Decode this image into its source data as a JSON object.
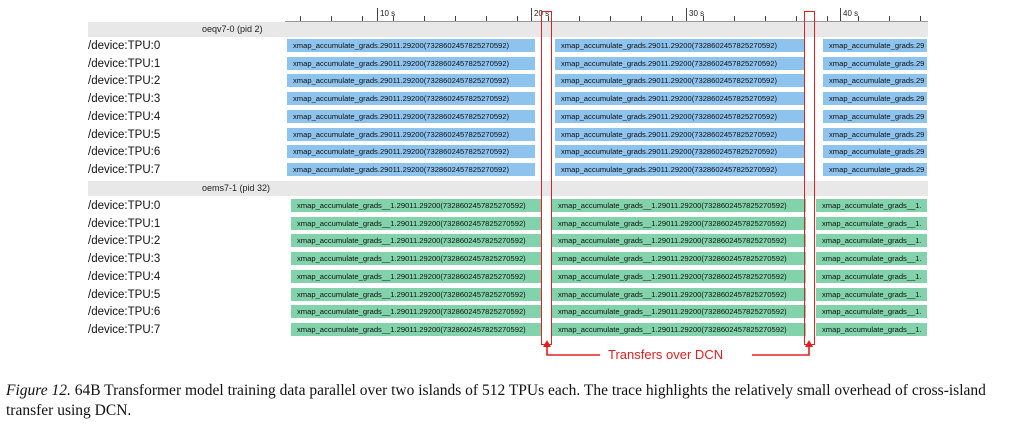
{
  "timeline": {
    "ticks": [
      "10 s",
      "20 s",
      "30 s",
      "40 s"
    ]
  },
  "processes": [
    {
      "header": "oeqv7-0 (pid 2)",
      "color": "#8ec3ee",
      "rows": [
        {
          "label": "/device:TPU:0",
          "slices": [
            "xmap_accumulate_grads.29011.29200(7328602457825270592)",
            "xmap_accumulate_grads.29011.29200(7328602457825270592)",
            "xmap_accumulate_grads.29"
          ]
        },
        {
          "label": "/device:TPU:1",
          "slices": [
            "xmap_accumulate_grads.29011.29200(7328602457825270592)",
            "xmap_accumulate_grads.29011.29200(7328602457825270592)",
            "xmap_accumulate_grads.29"
          ]
        },
        {
          "label": "/device:TPU:2",
          "slices": [
            "xmap_accumulate_grads.29011.29200(7328602457825270592)",
            "xmap_accumulate_grads.29011.29200(7328602457825270592)",
            "xmap_accumulate_grads.29"
          ]
        },
        {
          "label": "/device:TPU:3",
          "slices": [
            "xmap_accumulate_grads.29011.29200(7328602457825270592)",
            "xmap_accumulate_grads.29011.29200(7328602457825270592)",
            "xmap_accumulate_grads.29"
          ]
        },
        {
          "label": "/device:TPU:4",
          "slices": [
            "xmap_accumulate_grads.29011.29200(7328602457825270592)",
            "xmap_accumulate_grads.29011.29200(7328602457825270592)",
            "xmap_accumulate_grads.29"
          ]
        },
        {
          "label": "/device:TPU:5",
          "slices": [
            "xmap_accumulate_grads.29011.29200(7328602457825270592)",
            "xmap_accumulate_grads.29011.29200(7328602457825270592)",
            "xmap_accumulate_grads.29"
          ]
        },
        {
          "label": "/device:TPU:6",
          "slices": [
            "xmap_accumulate_grads.29011.29200(7328602457825270592)",
            "xmap_accumulate_grads.29011.29200(7328602457825270592)",
            "xmap_accumulate_grads.29"
          ]
        },
        {
          "label": "/device:TPU:7",
          "slices": [
            "xmap_accumulate_grads.29011.29200(7328602457825270592)",
            "xmap_accumulate_grads.29011.29200(7328602457825270592)",
            "xmap_accumulate_grads.29"
          ]
        }
      ]
    },
    {
      "header": "oems7-1 (pid 32)",
      "color": "#82d3ab",
      "rows": [
        {
          "label": "/device:TPU:0",
          "slices": [
            "xmap_accumulate_grads__1.29011.29200(7328602457825270592)",
            "xmap_accumulate_grads__1.29011.29200(7328602457825270592)",
            "xmap_accumulate_grads__1."
          ]
        },
        {
          "label": "/device:TPU:1",
          "slices": [
            "xmap_accumulate_grads__1.29011.29200(7328602457825270592)",
            "xmap_accumulate_grads__1.29011.29200(7328602457825270592)",
            "xmap_accumulate_grads__1."
          ]
        },
        {
          "label": "/device:TPU:2",
          "slices": [
            "xmap_accumulate_grads__1.29011.29200(7328602457825270592)",
            "xmap_accumulate_grads__1.29011.29200(7328602457825270592)",
            "xmap_accumulate_grads__1."
          ]
        },
        {
          "label": "/device:TPU:3",
          "slices": [
            "xmap_accumulate_grads__1.29011.29200(7328602457825270592)",
            "xmap_accumulate_grads__1.29011.29200(7328602457825270592)",
            "xmap_accumulate_grads__1."
          ]
        },
        {
          "label": "/device:TPU:4",
          "slices": [
            "xmap_accumulate_grads__1.29011.29200(7328602457825270592)",
            "xmap_accumulate_grads__1.29011.29200(7328602457825270592)",
            "xmap_accumulate_grads__1."
          ]
        },
        {
          "label": "/device:TPU:5",
          "slices": [
            "xmap_accumulate_grads__1.29011.29200(7328602457825270592)",
            "xmap_accumulate_grads__1.29011.29200(7328602457825270592)",
            "xmap_accumulate_grads__1."
          ]
        },
        {
          "label": "/device:TPU:6",
          "slices": [
            "xmap_accumulate_grads__1.29011.29200(7328602457825270592)",
            "xmap_accumulate_grads__1.29011.29200(7328602457825270592)",
            "xmap_accumulate_grads__1."
          ]
        },
        {
          "label": "/device:TPU:7",
          "slices": [
            "xmap_accumulate_grads__1.29011.29200(7328602457825270592)",
            "xmap_accumulate_grads__1.29011.29200(7328602457825270592)",
            "xmap_accumulate_grads__1."
          ]
        }
      ]
    }
  ],
  "annotation": {
    "label": "Transfers over DCN",
    "color": "#e02020"
  },
  "caption": {
    "figure_label": "Figure 12.",
    "text": "64B Transformer model training data parallel over two islands of 512 TPUs each. The trace highlights the relatively small overhead of cross-island transfer using DCN."
  }
}
